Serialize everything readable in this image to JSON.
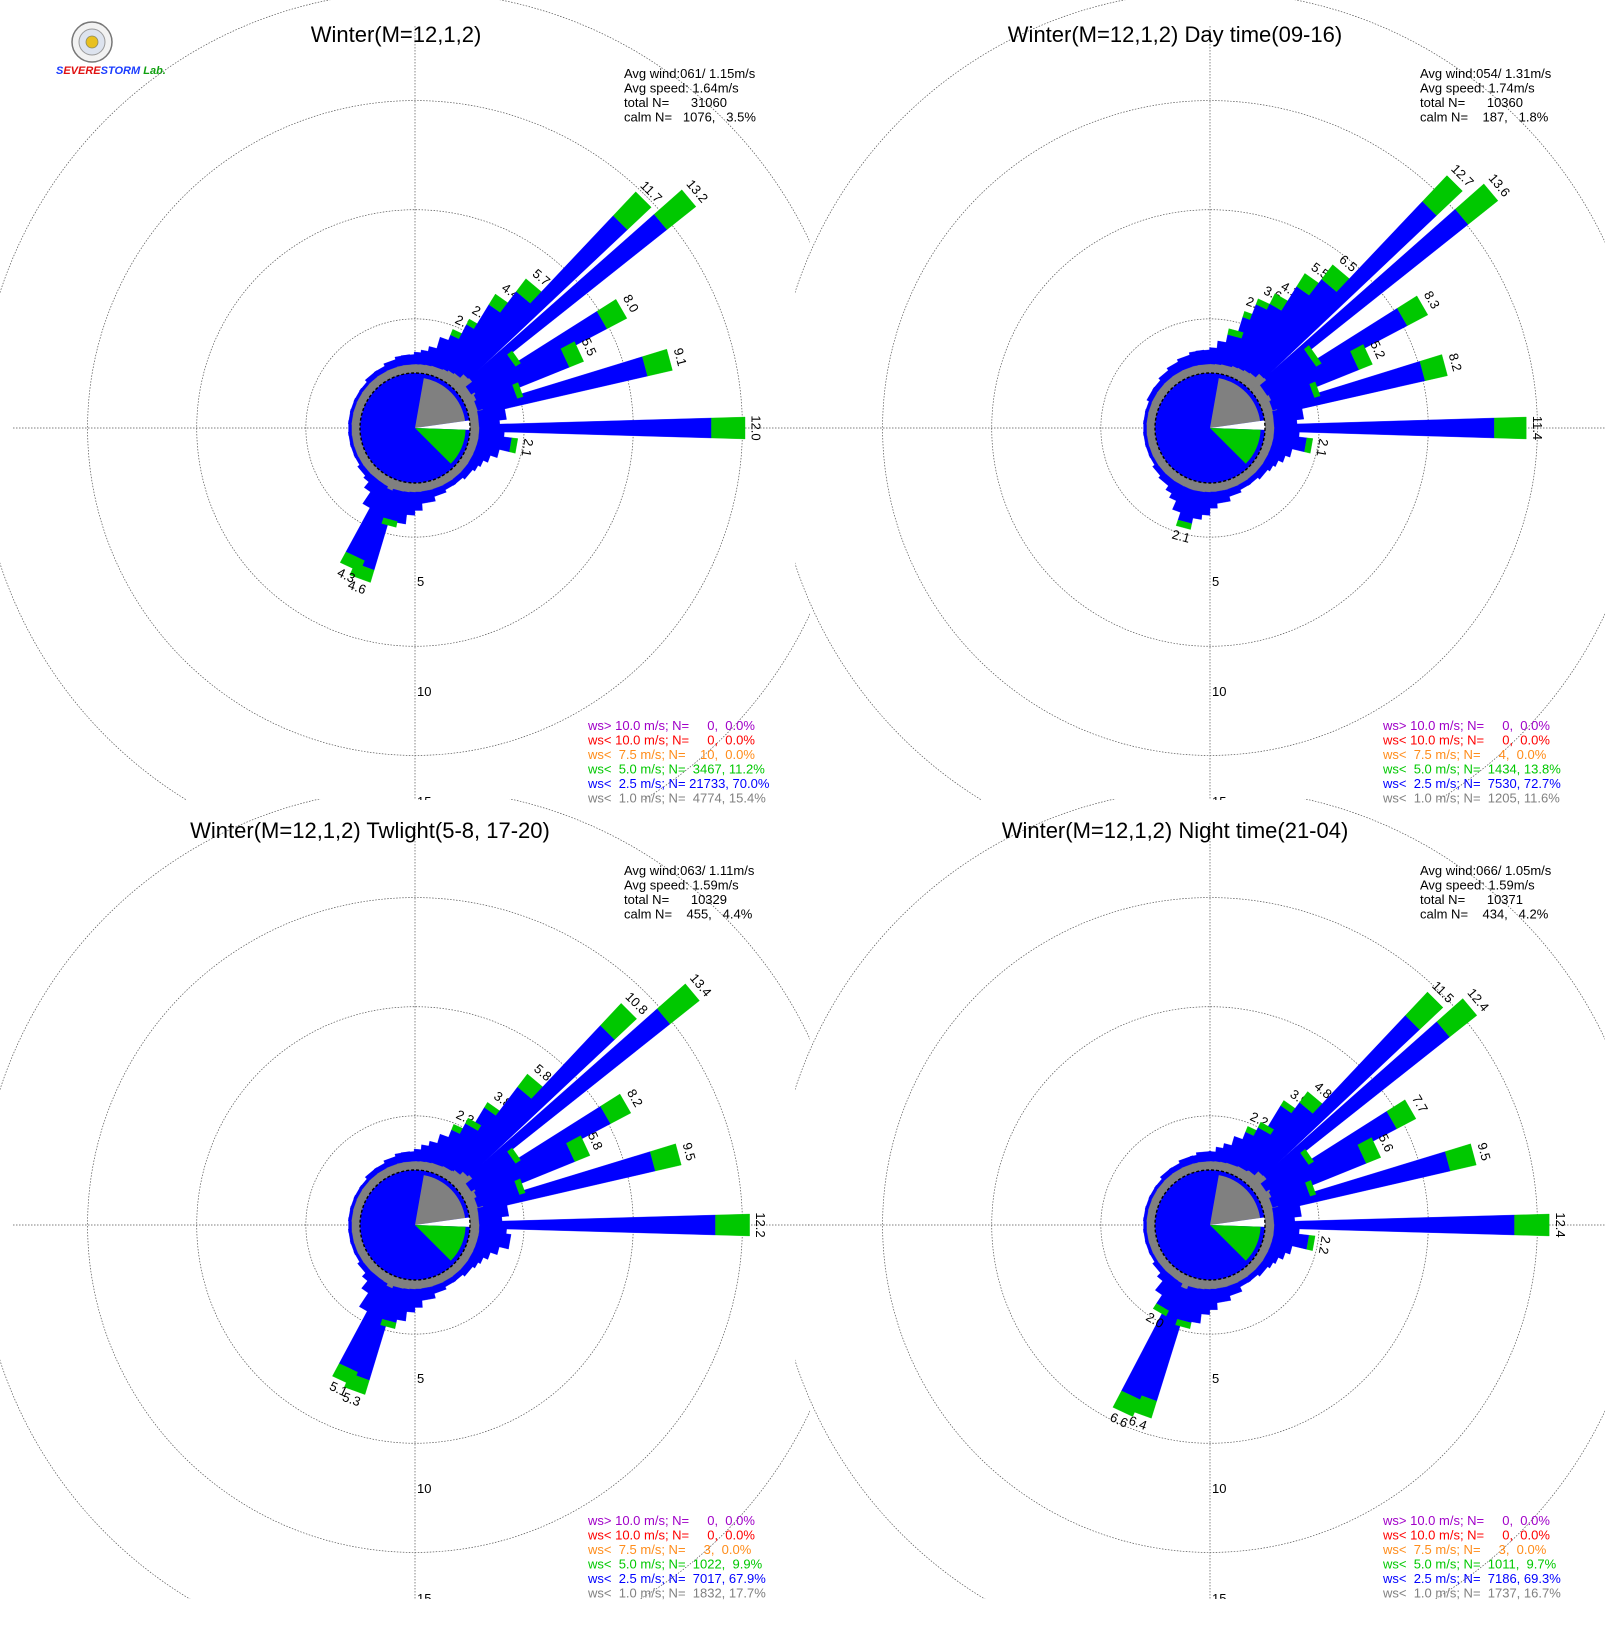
{
  "logo": {
    "text_parts": [
      {
        "t": "S",
        "color": "#1a3cff"
      },
      {
        "t": "EVERE",
        "color": "#e01010"
      },
      {
        "t": "STORM",
        "color": "#1a3cff"
      },
      {
        "t": " Lab.",
        "color": "#10a010"
      }
    ]
  },
  "colors": {
    "gray": "#808080",
    "blue": "#0000ff",
    "green": "#00c800",
    "orange": "#ff8c1a",
    "red": "#ff0000",
    "purple": "#a000c8",
    "grid": "#555555"
  },
  "ring_labels": [
    "5",
    "10",
    "15"
  ],
  "chart_data": [
    {
      "type": "windrose",
      "title": "Winter(M=12,1,2)",
      "stats": [
        "Avg wind:061/ 1.15m/s",
        "Avg speed: 1.64m/s",
        "total N=      31060",
        "calm N=   1076,   3.5%"
      ],
      "legend": [
        {
          "text": "ws> 10.0 m/s; N=     0,  0.0%",
          "color": "purple"
        },
        {
          "text": "ws< 10.0 m/s; N=     0,  0.0%",
          "color": "red"
        },
        {
          "text": "ws<  7.5 m/s; N=    10,  0.0%",
          "color": "orange"
        },
        {
          "text": "ws<  5.0 m/s; N=  3467, 11.2%",
          "color": "green"
        },
        {
          "text": "ws<  2.5 m/s; N= 21733, 70.0%",
          "color": "blue"
        },
        {
          "text": "ws<  1.0 m/s; N=  4774, 15.4%",
          "color": "gray"
        }
      ],
      "rmax": 15,
      "bars": [
        {
          "dir": 25,
          "total": 2.2,
          "labeled": true
        },
        {
          "dir": 30,
          "total": 2.9,
          "labeled": true
        },
        {
          "dir": 35,
          "total": 4.4,
          "labeled": true
        },
        {
          "dir": 40,
          "total": 5.7,
          "labeled": true
        },
        {
          "dir": 45,
          "total": 11.7,
          "labeled": true
        },
        {
          "dir": 50,
          "total": 13.2,
          "labeled": true
        },
        {
          "dir": 60,
          "total": 8.0,
          "labeled": true
        },
        {
          "dir": 65,
          "total": 5.5,
          "labeled": true
        },
        {
          "dir": 75,
          "total": 9.1,
          "labeled": true
        },
        {
          "dir": 90,
          "total": 12.0,
          "labeled": true
        },
        {
          "dir": 100,
          "total": 2.1,
          "labeled": true
        },
        {
          "dir": 200,
          "total": 4.6,
          "labeled": true
        },
        {
          "dir": 205,
          "total": 4.3,
          "labeled": true
        },
        {
          "dir": 5,
          "total": 0.9
        },
        {
          "dir": 10,
          "total": 1.0
        },
        {
          "dir": 15,
          "total": 1.2
        },
        {
          "dir": 20,
          "total": 1.7
        },
        {
          "dir": 55,
          "total": 3.0
        },
        {
          "dir": 70,
          "total": 2.5
        },
        {
          "dir": 80,
          "total": 1.6
        },
        {
          "dir": 85,
          "total": 1.3
        },
        {
          "dir": 95,
          "total": 1.5
        },
        {
          "dir": 105,
          "total": 1.4
        },
        {
          "dir": 110,
          "total": 1.1
        },
        {
          "dir": 115,
          "total": 0.9
        },
        {
          "dir": 120,
          "total": 0.8
        },
        {
          "dir": 130,
          "total": 0.7
        },
        {
          "dir": 140,
          "total": 0.6
        },
        {
          "dir": 150,
          "total": 0.6
        },
        {
          "dir": 160,
          "total": 0.7
        },
        {
          "dir": 170,
          "total": 0.9
        },
        {
          "dir": 180,
          "total": 1.2
        },
        {
          "dir": 185,
          "total": 1.4
        },
        {
          "dir": 190,
          "total": 1.8
        },
        {
          "dir": 195,
          "total": 2.0
        },
        {
          "dir": 210,
          "total": 1.6
        },
        {
          "dir": 215,
          "total": 1.0
        },
        {
          "dir": 220,
          "total": 0.7
        },
        {
          "dir": 230,
          "total": 0.6
        },
        {
          "dir": 240,
          "total": 0.5
        },
        {
          "dir": 250,
          "total": 0.5
        },
        {
          "dir": 260,
          "total": 0.5
        },
        {
          "dir": 270,
          "total": 0.5
        },
        {
          "dir": 280,
          "total": 0.5
        },
        {
          "dir": 290,
          "total": 0.5
        },
        {
          "dir": 300,
          "total": 0.5
        },
        {
          "dir": 310,
          "total": 0.5
        },
        {
          "dir": 320,
          "total": 0.6
        },
        {
          "dir": 330,
          "total": 0.6
        },
        {
          "dir": 340,
          "total": 0.7
        },
        {
          "dir": 350,
          "total": 0.8
        },
        {
          "dir": 355,
          "total": 0.8
        }
      ]
    },
    {
      "type": "windrose",
      "title": "Winter(M=12,1,2) Day time(09-16)",
      "stats": [
        "Avg wind:054/ 1.31m/s",
        "Avg speed: 1.74m/s",
        "total N=      10360",
        "calm N=    187,   1.8%"
      ],
      "legend": [
        {
          "text": "ws> 10.0 m/s; N=     0,  0.0%",
          "color": "purple"
        },
        {
          "text": "ws< 10.0 m/s; N=     0,  0.0%",
          "color": "red"
        },
        {
          "text": "ws<  7.5 m/s; N=     4,  0.0%",
          "color": "orange"
        },
        {
          "text": "ws<  5.0 m/s; N=  1434, 13.8%",
          "color": "green"
        },
        {
          "text": "ws<  2.5 m/s; N=  7530, 72.7%",
          "color": "blue"
        },
        {
          "text": "ws<  1.0 m/s; N=  1205, 11.6%",
          "color": "gray"
        }
      ],
      "rmax": 15,
      "bars": [
        {
          "dir": 20,
          "total": 2.9,
          "labeled": true
        },
        {
          "dir": 25,
          "total": 3.6,
          "labeled": true
        },
        {
          "dir": 30,
          "total": 4.1,
          "labeled": true
        },
        {
          "dir": 35,
          "total": 5.5,
          "labeled": true
        },
        {
          "dir": 40,
          "total": 6.5,
          "labeled": true
        },
        {
          "dir": 45,
          "total": 12.7,
          "labeled": true
        },
        {
          "dir": 50,
          "total": 13.6,
          "labeled": true
        },
        {
          "dir": 60,
          "total": 8.3,
          "labeled": true
        },
        {
          "dir": 65,
          "total": 5.2,
          "labeled": true
        },
        {
          "dir": 75,
          "total": 8.2,
          "labeled": true
        },
        {
          "dir": 90,
          "total": 11.4,
          "labeled": true
        },
        {
          "dir": 100,
          "total": 2.1,
          "labeled": true
        },
        {
          "dir": 195,
          "total": 2.1,
          "labeled": true
        },
        {
          "dir": 5,
          "total": 1.1
        },
        {
          "dir": 10,
          "total": 1.4
        },
        {
          "dir": 15,
          "total": 2.0
        },
        {
          "dir": 55,
          "total": 3.2
        },
        {
          "dir": 70,
          "total": 2.6
        },
        {
          "dir": 80,
          "total": 1.7
        },
        {
          "dir": 85,
          "total": 1.4
        },
        {
          "dir": 95,
          "total": 1.5
        },
        {
          "dir": 105,
          "total": 1.3
        },
        {
          "dir": 110,
          "total": 1.1
        },
        {
          "dir": 115,
          "total": 0.9
        },
        {
          "dir": 120,
          "total": 0.8
        },
        {
          "dir": 130,
          "total": 0.7
        },
        {
          "dir": 140,
          "total": 0.6
        },
        {
          "dir": 150,
          "total": 0.6
        },
        {
          "dir": 160,
          "total": 0.7
        },
        {
          "dir": 170,
          "total": 0.9
        },
        {
          "dir": 180,
          "total": 1.1
        },
        {
          "dir": 185,
          "total": 1.4
        },
        {
          "dir": 190,
          "total": 1.6
        },
        {
          "dir": 200,
          "total": 1.5
        },
        {
          "dir": 205,
          "total": 1.1
        },
        {
          "dir": 210,
          "total": 0.9
        },
        {
          "dir": 220,
          "total": 0.7
        },
        {
          "dir": 230,
          "total": 0.6
        },
        {
          "dir": 240,
          "total": 0.5
        },
        {
          "dir": 250,
          "total": 0.5
        },
        {
          "dir": 260,
          "total": 0.5
        },
        {
          "dir": 270,
          "total": 0.5
        },
        {
          "dir": 280,
          "total": 0.5
        },
        {
          "dir": 290,
          "total": 0.5
        },
        {
          "dir": 300,
          "total": 0.6
        },
        {
          "dir": 310,
          "total": 0.6
        },
        {
          "dir": 320,
          "total": 0.7
        },
        {
          "dir": 330,
          "total": 0.8
        },
        {
          "dir": 340,
          "total": 0.9
        },
        {
          "dir": 350,
          "total": 1.0
        },
        {
          "dir": 355,
          "total": 1.0
        }
      ]
    },
    {
      "type": "windrose",
      "title": "Winter(M=12,1,2) Twlight(5-8, 17-20)",
      "stats": [
        "Avg wind:063/ 1.11m/s",
        "Avg speed: 1.59m/s",
        "total N=      10329",
        "calm N=    455,   4.4%"
      ],
      "legend": [
        {
          "text": "ws> 10.0 m/s; N=     0,  0.0%",
          "color": "purple"
        },
        {
          "text": "ws< 10.0 m/s; N=     0,  0.0%",
          "color": "red"
        },
        {
          "text": "ws<  7.5 m/s; N=     3,  0.0%",
          "color": "orange"
        },
        {
          "text": "ws<  5.0 m/s; N=  1022,  9.9%",
          "color": "green"
        },
        {
          "text": "ws<  2.5 m/s; N=  7017, 67.9%",
          "color": "blue"
        },
        {
          "text": "ws<  1.0 m/s; N=  1832, 17.7%",
          "color": "gray"
        }
      ],
      "rmax": 15,
      "bars": [
        {
          "dir": 25,
          "total": 2.3,
          "labeled": true
        },
        {
          "dir": 35,
          "total": 3.8,
          "labeled": true
        },
        {
          "dir": 40,
          "total": 5.8,
          "labeled": true
        },
        {
          "dir": 45,
          "total": 10.8,
          "labeled": true
        },
        {
          "dir": 50,
          "total": 13.4,
          "labeled": true
        },
        {
          "dir": 60,
          "total": 8.2,
          "labeled": true
        },
        {
          "dir": 65,
          "total": 5.8,
          "labeled": true
        },
        {
          "dir": 75,
          "total": 9.5,
          "labeled": true
        },
        {
          "dir": 90,
          "total": 12.2,
          "labeled": true
        },
        {
          "dir": 200,
          "total": 5.3,
          "labeled": true
        },
        {
          "dir": 205,
          "total": 5.1,
          "labeled": true
        },
        {
          "dir": 5,
          "total": 0.9
        },
        {
          "dir": 10,
          "total": 1.1
        },
        {
          "dir": 15,
          "total": 1.3
        },
        {
          "dir": 20,
          "total": 1.7
        },
        {
          "dir": 30,
          "total": 2.8
        },
        {
          "dir": 55,
          "total": 3.0
        },
        {
          "dir": 70,
          "total": 2.6
        },
        {
          "dir": 80,
          "total": 1.7
        },
        {
          "dir": 85,
          "total": 1.4
        },
        {
          "dir": 95,
          "total": 1.6
        },
        {
          "dir": 100,
          "total": 1.8
        },
        {
          "dir": 105,
          "total": 1.4
        },
        {
          "dir": 110,
          "total": 1.1
        },
        {
          "dir": 115,
          "total": 0.9
        },
        {
          "dir": 120,
          "total": 0.8
        },
        {
          "dir": 130,
          "total": 0.7
        },
        {
          "dir": 140,
          "total": 0.6
        },
        {
          "dir": 150,
          "total": 0.6
        },
        {
          "dir": 160,
          "total": 0.7
        },
        {
          "dir": 170,
          "total": 0.9
        },
        {
          "dir": 180,
          "total": 1.2
        },
        {
          "dir": 185,
          "total": 1.4
        },
        {
          "dir": 190,
          "total": 1.8
        },
        {
          "dir": 195,
          "total": 2.2
        },
        {
          "dir": 210,
          "total": 1.9
        },
        {
          "dir": 215,
          "total": 1.2
        },
        {
          "dir": 220,
          "total": 0.8
        },
        {
          "dir": 230,
          "total": 0.6
        },
        {
          "dir": 240,
          "total": 0.5
        },
        {
          "dir": 250,
          "total": 0.5
        },
        {
          "dir": 260,
          "total": 0.5
        },
        {
          "dir": 270,
          "total": 0.5
        },
        {
          "dir": 280,
          "total": 0.5
        },
        {
          "dir": 290,
          "total": 0.5
        },
        {
          "dir": 300,
          "total": 0.5
        },
        {
          "dir": 310,
          "total": 0.5
        },
        {
          "dir": 320,
          "total": 0.6
        },
        {
          "dir": 330,
          "total": 0.6
        },
        {
          "dir": 340,
          "total": 0.7
        },
        {
          "dir": 350,
          "total": 0.8
        },
        {
          "dir": 355,
          "total": 0.8
        }
      ]
    },
    {
      "type": "windrose",
      "title": "Winter(M=12,1,2) Night time(21-04)",
      "stats": [
        "Avg wind:066/ 1.05m/s",
        "Avg speed: 1.59m/s",
        "total N=      10371",
        "calm N=    434,   4.2%"
      ],
      "legend": [
        {
          "text": "ws> 10.0 m/s; N=     0,  0.0%",
          "color": "purple"
        },
        {
          "text": "ws< 10.0 m/s; N=     0,  0.0%",
          "color": "red"
        },
        {
          "text": "ws<  7.5 m/s; N=     3,  0.0%",
          "color": "orange"
        },
        {
          "text": "ws<  5.0 m/s; N=  1011,  9.7%",
          "color": "green"
        },
        {
          "text": "ws<  2.5 m/s; N=  7186, 69.3%",
          "color": "blue"
        },
        {
          "text": "ws<  1.0 m/s; N=  1737, 16.7%",
          "color": "gray"
        }
      ],
      "rmax": 15,
      "bars": [
        {
          "dir": 25,
          "total": 2.2,
          "labeled": true
        },
        {
          "dir": 35,
          "total": 3.9,
          "labeled": true
        },
        {
          "dir": 40,
          "total": 4.8,
          "labeled": true
        },
        {
          "dir": 45,
          "total": 11.5,
          "labeled": true
        },
        {
          "dir": 50,
          "total": 12.4,
          "labeled": true
        },
        {
          "dir": 60,
          "total": 7.7,
          "labeled": true
        },
        {
          "dir": 65,
          "total": 5.6,
          "labeled": true
        },
        {
          "dir": 75,
          "total": 9.5,
          "labeled": true
        },
        {
          "dir": 90,
          "total": 12.4,
          "labeled": true
        },
        {
          "dir": 100,
          "total": 2.2,
          "labeled": true
        },
        {
          "dir": 200,
          "total": 6.4,
          "labeled": true
        },
        {
          "dir": 205,
          "total": 6.6,
          "labeled": true
        },
        {
          "dir": 210,
          "total": 2.0,
          "labeled": true
        },
        {
          "dir": 5,
          "total": 0.8
        },
        {
          "dir": 10,
          "total": 1.0
        },
        {
          "dir": 15,
          "total": 1.2
        },
        {
          "dir": 20,
          "total": 1.6
        },
        {
          "dir": 30,
          "total": 2.6
        },
        {
          "dir": 55,
          "total": 2.9
        },
        {
          "dir": 70,
          "total": 2.4
        },
        {
          "dir": 80,
          "total": 1.6
        },
        {
          "dir": 85,
          "total": 1.3
        },
        {
          "dir": 95,
          "total": 1.5
        },
        {
          "dir": 105,
          "total": 1.3
        },
        {
          "dir": 110,
          "total": 1.1
        },
        {
          "dir": 115,
          "total": 0.9
        },
        {
          "dir": 120,
          "total": 0.8
        },
        {
          "dir": 130,
          "total": 0.7
        },
        {
          "dir": 140,
          "total": 0.6
        },
        {
          "dir": 150,
          "total": 0.6
        },
        {
          "dir": 160,
          "total": 0.8
        },
        {
          "dir": 170,
          "total": 1.0
        },
        {
          "dir": 180,
          "total": 1.3
        },
        {
          "dir": 185,
          "total": 1.5
        },
        {
          "dir": 190,
          "total": 1.9
        },
        {
          "dir": 195,
          "total": 2.2
        },
        {
          "dir": 215,
          "total": 1.3
        },
        {
          "dir": 220,
          "total": 0.8
        },
        {
          "dir": 230,
          "total": 0.6
        },
        {
          "dir": 240,
          "total": 0.5
        },
        {
          "dir": 250,
          "total": 0.5
        },
        {
          "dir": 260,
          "total": 0.5
        },
        {
          "dir": 270,
          "total": 0.5
        },
        {
          "dir": 280,
          "total": 0.5
        },
        {
          "dir": 290,
          "total": 0.5
        },
        {
          "dir": 300,
          "total": 0.5
        },
        {
          "dir": 310,
          "total": 0.5
        },
        {
          "dir": 320,
          "total": 0.6
        },
        {
          "dir": 330,
          "total": 0.6
        },
        {
          "dir": 340,
          "total": 0.7
        },
        {
          "dir": 350,
          "total": 0.7
        },
        {
          "dir": 355,
          "total": 0.8
        }
      ]
    }
  ]
}
